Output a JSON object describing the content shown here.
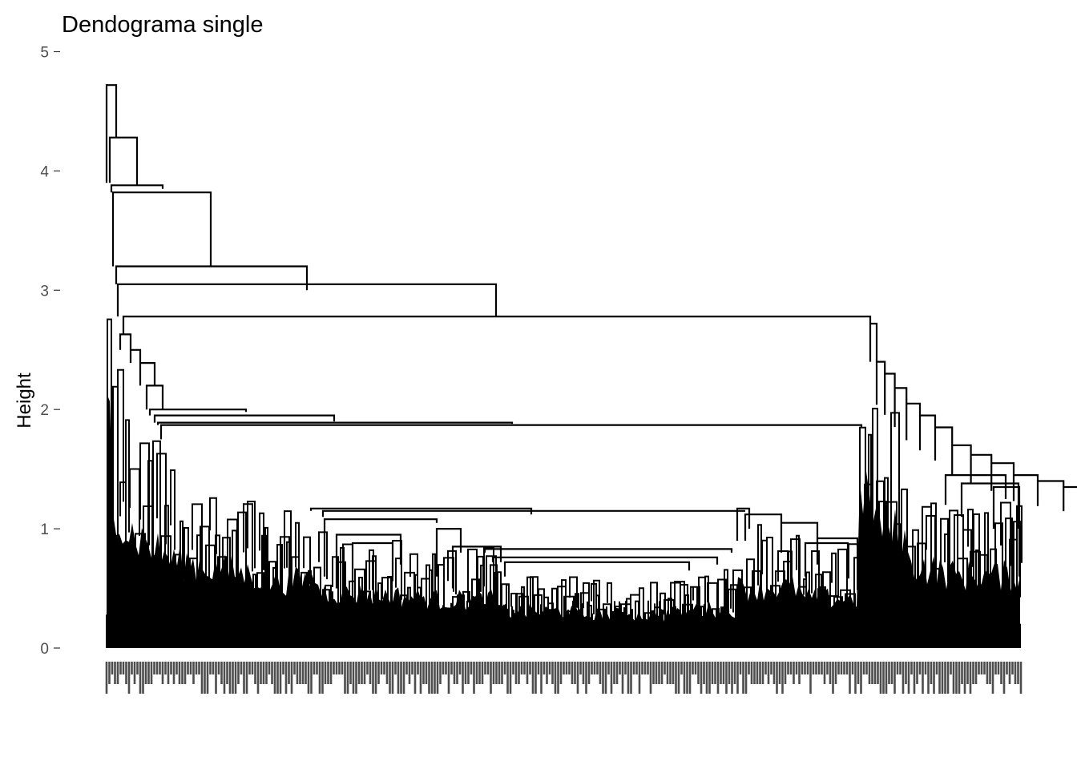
{
  "chart_data": {
    "type": "dendrogram",
    "title": "Dendograma single",
    "ylabel": "Height",
    "xlabel": "",
    "ylim": [
      0,
      5
    ],
    "yticks": [
      0,
      1,
      2,
      3,
      4,
      5
    ],
    "grid": false,
    "legend": "none",
    "line_color": "#000000",
    "leaf_label_color": "#4d4d4d",
    "merge_heights_main": [
      4.72,
      4.28,
      3.88,
      3.82,
      3.2,
      3.05,
      2.78,
      2.63,
      2.5,
      2.39,
      2.2,
      2.0,
      1.95,
      1.89,
      1.87,
      1.17,
      1.15,
      0.83,
      0.76,
      0.72
    ],
    "right_cluster_heights": [
      2.72,
      2.4,
      2.3,
      2.18,
      2.05,
      1.95,
      1.85,
      1.7,
      1.62,
      1.55,
      1.45,
      1.4,
      1.35,
      1.3
    ]
  }
}
